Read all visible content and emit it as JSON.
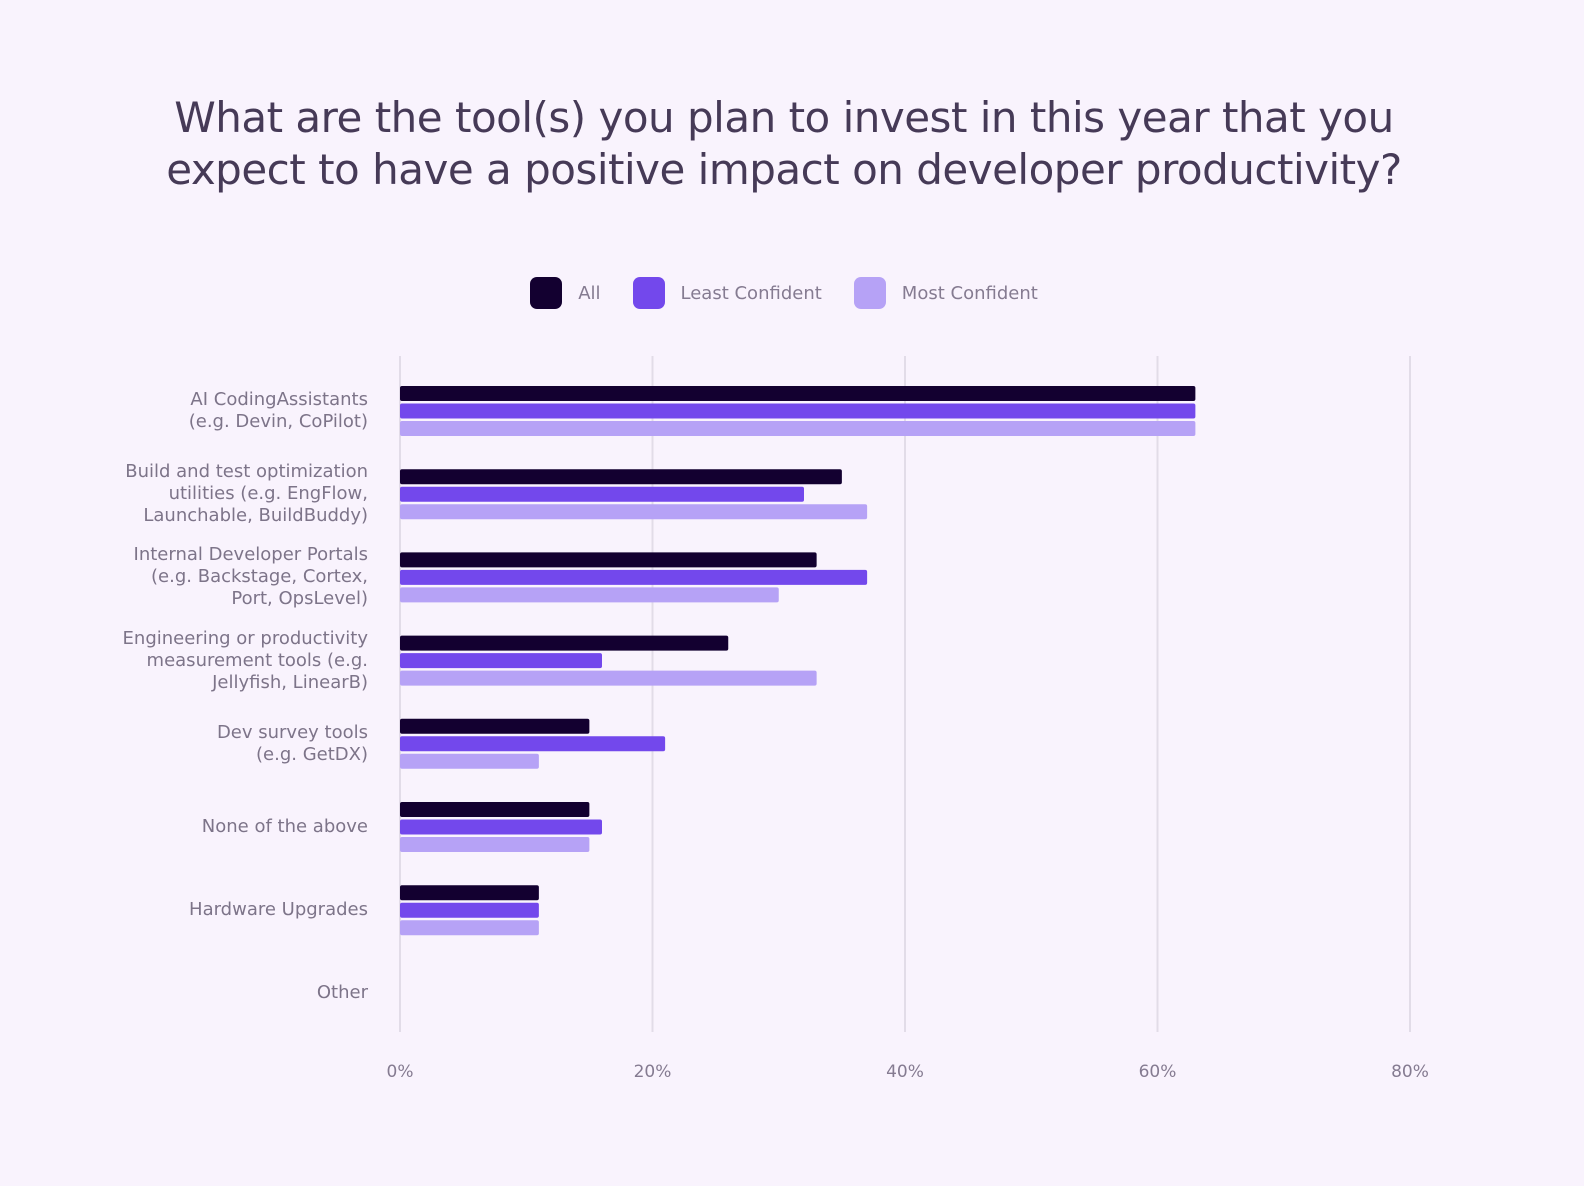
{
  "chart_data": {
    "type": "bar",
    "orientation": "horizontal",
    "title": "What are the tool(s) you plan to invest in this year that you expect to have a positive impact on developer productivity?",
    "title_lines": [
      "What are the tool(s) you plan to invest in this year that you",
      "expect to have a positive impact on developer productivity?"
    ],
    "categories": [
      "AI CodingAssistants\n(e.g. Devin, CoPilot)",
      "Build and test optimization\nutilities (e.g. EngFlow,\nLaunchable, BuildBuddy)",
      "Internal Developer Portals\n(e.g. Backstage, Cortex,\nPort, OpsLevel)",
      "Engineering or productivity\nmeasurement tools (e.g.\nJellyfish, LinearB)",
      "Dev survey tools\n(e.g. GetDX)",
      "None of the above",
      "Hardware Upgrades",
      "Other"
    ],
    "series": [
      {
        "name": "All",
        "color": "#130030",
        "values": [
          63,
          35,
          33,
          26,
          15,
          15,
          11,
          0
        ]
      },
      {
        "name": "Least Confident",
        "color": "#7348ec",
        "values": [
          63,
          32,
          37,
          16,
          21,
          16,
          11,
          0
        ]
      },
      {
        "name": "Most Confident",
        "color": "#b6a2f6",
        "values": [
          63,
          37,
          30,
          33,
          11,
          15,
          11,
          0
        ]
      }
    ],
    "xlabel": "",
    "ylabel": "",
    "xlim": [
      0,
      80
    ],
    "x_ticks": [
      "0%",
      "20%",
      "40%",
      "60%",
      "80%"
    ],
    "x_tick_values": [
      0,
      20,
      40,
      60,
      80
    ],
    "grid": true,
    "legend_position": "top-center"
  }
}
